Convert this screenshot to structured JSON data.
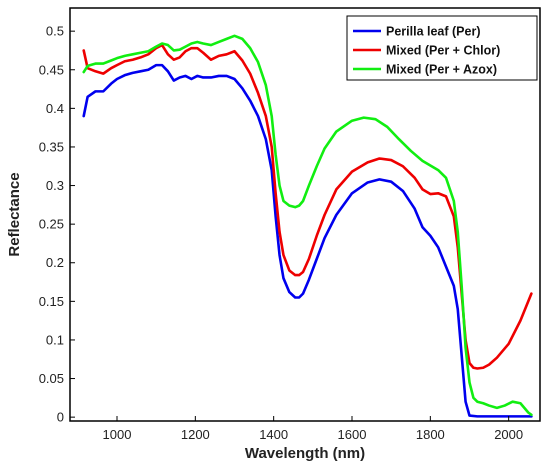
{
  "chart_data": {
    "type": "line",
    "title": "",
    "xlabel": "Wavelength (nm)",
    "ylabel": "Reflectance",
    "xlim": [
      880,
      2080
    ],
    "ylim": [
      -0.005,
      0.53
    ],
    "xticks": [
      1000,
      1200,
      1400,
      1600,
      1800,
      2000
    ],
    "yticks": [
      0,
      0.05,
      0.1,
      0.15,
      0.2,
      0.25,
      0.3,
      0.35,
      0.4,
      0.45,
      0.5
    ],
    "ytick_labels": [
      "0",
      "0.05",
      "0.1",
      "0.15",
      "0.2",
      "0.25",
      "0.3",
      "0.35",
      "0.4",
      "0.45",
      "0.5"
    ],
    "grid": false,
    "legend_position": "top-right",
    "series": [
      {
        "name": "Perilla leaf (Per)",
        "color": "#0000ee",
        "x": [
          915,
          925,
          945,
          965,
          985,
          1000,
          1020,
          1040,
          1060,
          1080,
          1100,
          1115,
          1130,
          1145,
          1160,
          1175,
          1190,
          1205,
          1220,
          1240,
          1260,
          1280,
          1300,
          1320,
          1340,
          1360,
          1380,
          1395,
          1405,
          1415,
          1425,
          1440,
          1455,
          1465,
          1475,
          1490,
          1510,
          1530,
          1560,
          1600,
          1640,
          1670,
          1700,
          1730,
          1760,
          1780,
          1800,
          1820,
          1840,
          1860,
          1870,
          1880,
          1890,
          1900,
          1920,
          1950,
          2000,
          2050,
          2058
        ],
        "y": [
          0.39,
          0.415,
          0.422,
          0.422,
          0.432,
          0.438,
          0.443,
          0.446,
          0.448,
          0.45,
          0.456,
          0.456,
          0.448,
          0.436,
          0.44,
          0.442,
          0.438,
          0.442,
          0.44,
          0.44,
          0.442,
          0.442,
          0.438,
          0.426,
          0.41,
          0.39,
          0.36,
          0.32,
          0.26,
          0.21,
          0.18,
          0.162,
          0.155,
          0.155,
          0.16,
          0.178,
          0.205,
          0.232,
          0.262,
          0.29,
          0.304,
          0.308,
          0.305,
          0.293,
          0.27,
          0.246,
          0.235,
          0.22,
          0.195,
          0.17,
          0.14,
          0.08,
          0.02,
          0.002,
          0.001,
          0.001,
          0.001,
          0.001,
          0.001
        ]
      },
      {
        "name": "Mixed (Per + Chlor)",
        "color": "#ee0000",
        "x": [
          915,
          925,
          945,
          965,
          985,
          1000,
          1020,
          1040,
          1060,
          1080,
          1100,
          1115,
          1130,
          1145,
          1160,
          1175,
          1190,
          1205,
          1220,
          1240,
          1260,
          1280,
          1300,
          1320,
          1340,
          1360,
          1380,
          1395,
          1405,
          1415,
          1425,
          1440,
          1455,
          1465,
          1475,
          1490,
          1510,
          1530,
          1560,
          1600,
          1640,
          1670,
          1700,
          1730,
          1760,
          1780,
          1800,
          1820,
          1840,
          1860,
          1870,
          1880,
          1890,
          1900,
          1910,
          1920,
          1935,
          1950,
          1970,
          2000,
          2030,
          2058
        ],
        "y": [
          0.475,
          0.452,
          0.448,
          0.445,
          0.452,
          0.456,
          0.461,
          0.463,
          0.466,
          0.47,
          0.478,
          0.482,
          0.47,
          0.463,
          0.466,
          0.474,
          0.478,
          0.478,
          0.472,
          0.463,
          0.468,
          0.47,
          0.474,
          0.462,
          0.445,
          0.42,
          0.39,
          0.35,
          0.29,
          0.24,
          0.21,
          0.19,
          0.184,
          0.184,
          0.188,
          0.205,
          0.235,
          0.262,
          0.295,
          0.318,
          0.33,
          0.335,
          0.333,
          0.325,
          0.31,
          0.295,
          0.289,
          0.29,
          0.286,
          0.26,
          0.22,
          0.16,
          0.1,
          0.07,
          0.064,
          0.063,
          0.064,
          0.068,
          0.077,
          0.095,
          0.125,
          0.16
        ]
      },
      {
        "name": "Mixed (Per + Azox)",
        "color": "#11ee11",
        "x": [
          915,
          925,
          945,
          965,
          985,
          1000,
          1020,
          1040,
          1060,
          1080,
          1100,
          1115,
          1130,
          1145,
          1160,
          1175,
          1190,
          1205,
          1220,
          1240,
          1260,
          1280,
          1300,
          1320,
          1340,
          1360,
          1380,
          1395,
          1405,
          1415,
          1425,
          1440,
          1455,
          1465,
          1475,
          1490,
          1510,
          1530,
          1560,
          1600,
          1630,
          1660,
          1690,
          1720,
          1750,
          1780,
          1800,
          1820,
          1840,
          1860,
          1870,
          1880,
          1890,
          1900,
          1910,
          1920,
          1935,
          1950,
          1970,
          1990,
          2010,
          2030,
          2050,
          2058
        ],
        "y": [
          0.447,
          0.455,
          0.458,
          0.458,
          0.462,
          0.465,
          0.468,
          0.47,
          0.472,
          0.474,
          0.48,
          0.484,
          0.482,
          0.475,
          0.476,
          0.48,
          0.484,
          0.486,
          0.484,
          0.482,
          0.486,
          0.49,
          0.494,
          0.49,
          0.478,
          0.46,
          0.43,
          0.39,
          0.34,
          0.3,
          0.28,
          0.274,
          0.272,
          0.274,
          0.28,
          0.3,
          0.325,
          0.348,
          0.37,
          0.384,
          0.388,
          0.386,
          0.376,
          0.36,
          0.345,
          0.332,
          0.326,
          0.32,
          0.31,
          0.28,
          0.24,
          0.17,
          0.09,
          0.045,
          0.025,
          0.02,
          0.018,
          0.015,
          0.012,
          0.015,
          0.02,
          0.018,
          0.006,
          0.003
        ]
      }
    ]
  }
}
